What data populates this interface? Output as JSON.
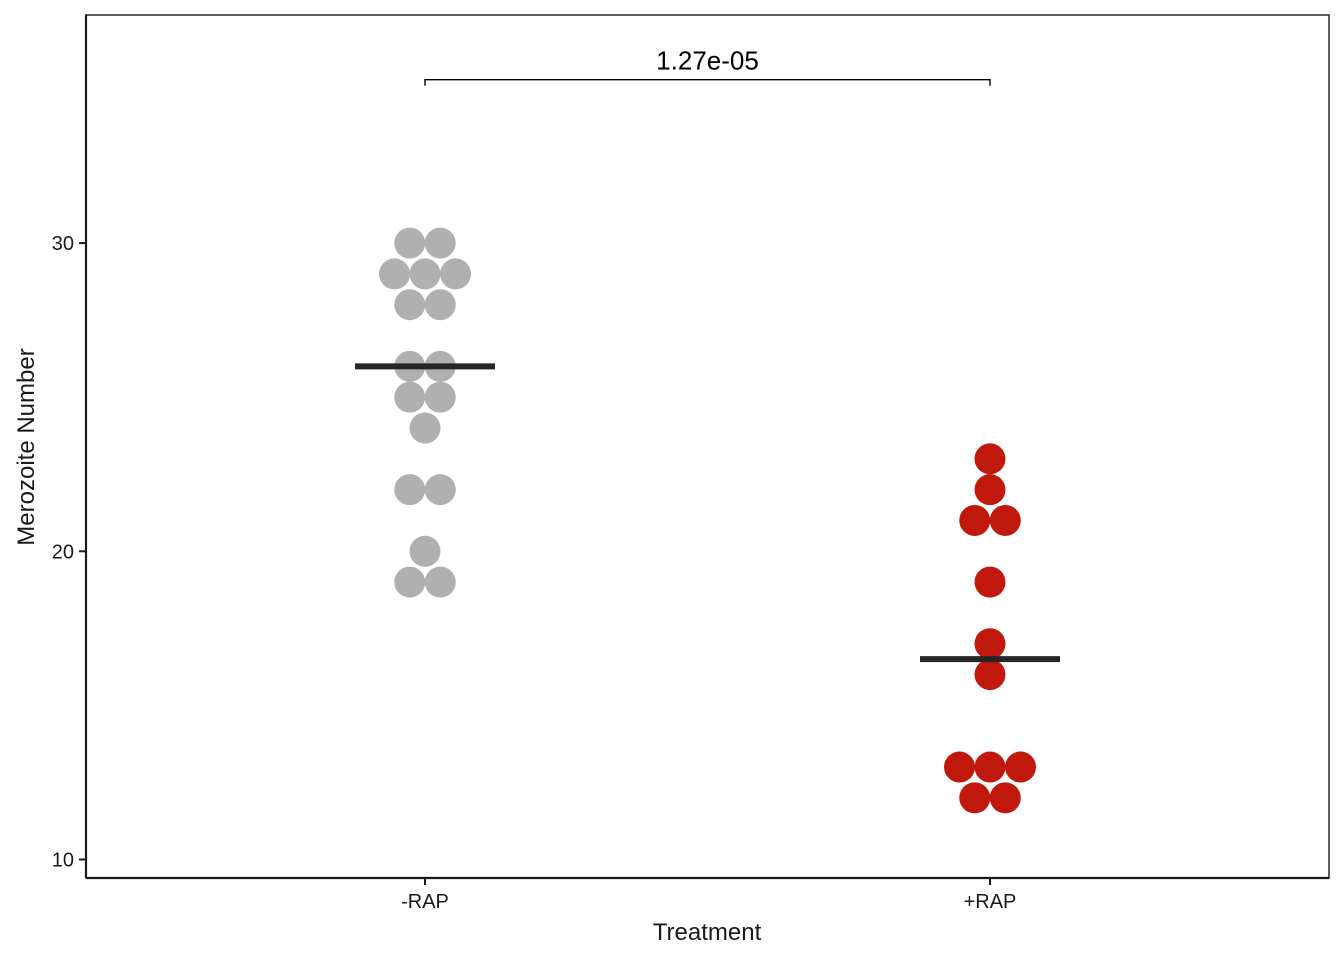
{
  "chart_data": {
    "type": "scatter",
    "subtype": "dotplot",
    "xlabel": "Treatment",
    "ylabel": "Merozoite Number",
    "categories": [
      "-RAP",
      "+RAP"
    ],
    "y_ticks": [
      "10",
      "20",
      "30"
    ],
    "ylim": [
      9.4,
      37.4
    ],
    "grid": false,
    "legend": "none",
    "series": [
      {
        "category": "-RAP",
        "color": "#b0b0b0",
        "values": [
          19,
          19,
          20,
          22,
          22,
          24,
          25,
          25,
          26,
          26,
          28,
          28,
          29,
          29,
          29,
          30,
          30
        ],
        "median": 26
      },
      {
        "category": "+RAP",
        "color": "#c0180c",
        "values": [
          12,
          12,
          13,
          13,
          13,
          16,
          17,
          19,
          21,
          21,
          22,
          23
        ],
        "median": 16.5
      }
    ],
    "annotations": [
      {
        "type": "bracket",
        "from": "-RAP",
        "to": "+RAP",
        "y": 35.3,
        "label": "1.27e-05"
      }
    ]
  }
}
